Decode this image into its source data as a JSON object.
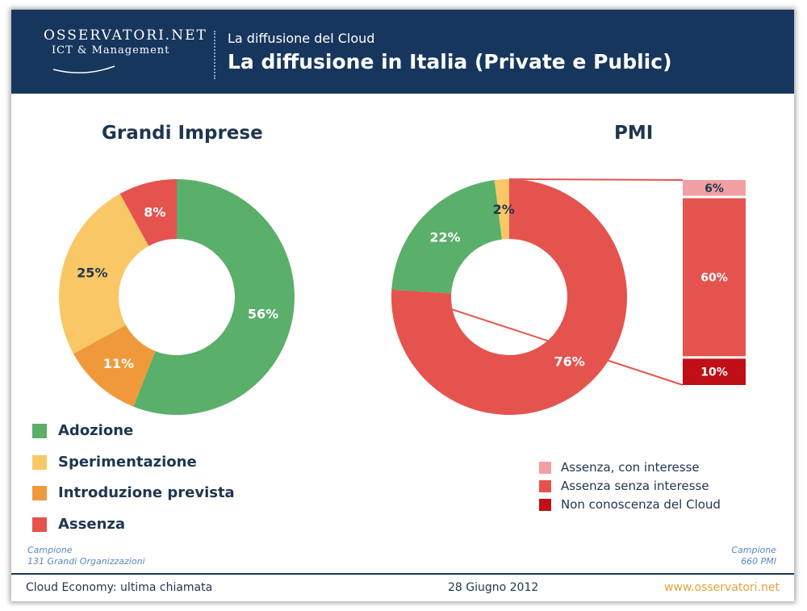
{
  "header": {
    "logo_name": "OSSERVATORI.NET",
    "logo_sub": "ICT & Management",
    "subtitle": "La diffusione del Cloud",
    "title": "La diffusione in Italia (Private e Public)"
  },
  "colors": {
    "header_bg": "#17365d",
    "adozione": "#5aaf6a",
    "sperimentazione": "#f9c766",
    "introduzione": "#f0993a",
    "assenza": "#e5534f",
    "assenza_interesse": "#f2a0a3",
    "assenza_senza": "#e5534f",
    "non_conoscenza": "#c00f17"
  },
  "chart_data": [
    {
      "type": "pie",
      "title": "Grandi Imprese",
      "labels": [
        "Adozione",
        "Introduzione prevista",
        "Sperimentazione",
        "Assenza"
      ],
      "values": [
        56,
        11,
        25,
        8
      ],
      "value_labels": [
        "56%",
        "11%",
        "25%",
        "8%"
      ]
    },
    {
      "type": "pie",
      "title": "PMI",
      "labels": [
        "Assenza",
        "Adozione",
        "Sperimentazione"
      ],
      "values": [
        76,
        22,
        2
      ],
      "value_labels": [
        "76%",
        "22%",
        "2%"
      ],
      "breakdown": {
        "type": "bar",
        "labels": [
          "Assenza, con interesse",
          "Assenza senza interesse",
          "Non conoscenza del Cloud"
        ],
        "values": [
          6,
          60,
          10
        ],
        "value_labels": [
          "6%",
          "60%",
          "10%"
        ]
      }
    }
  ],
  "legend_left": [
    {
      "label": "Adozione"
    },
    {
      "label": "Sperimentazione"
    },
    {
      "label": "Introduzione prevista"
    },
    {
      "label": "Assenza"
    }
  ],
  "legend_right": [
    {
      "label": "Assenza, con interesse"
    },
    {
      "label": "Assenza senza interesse"
    },
    {
      "label": "Non conoscenza del Cloud"
    }
  ],
  "sample_left": {
    "line1": "Campione",
    "line2": "131 Grandi Organizzazioni"
  },
  "sample_right": {
    "line1": "Campione",
    "line2": "660 PMI"
  },
  "footer": {
    "left": "Cloud Economy: ultima chiamata",
    "center": "28 Giugno 2012",
    "right": "www.osservatori.net"
  }
}
